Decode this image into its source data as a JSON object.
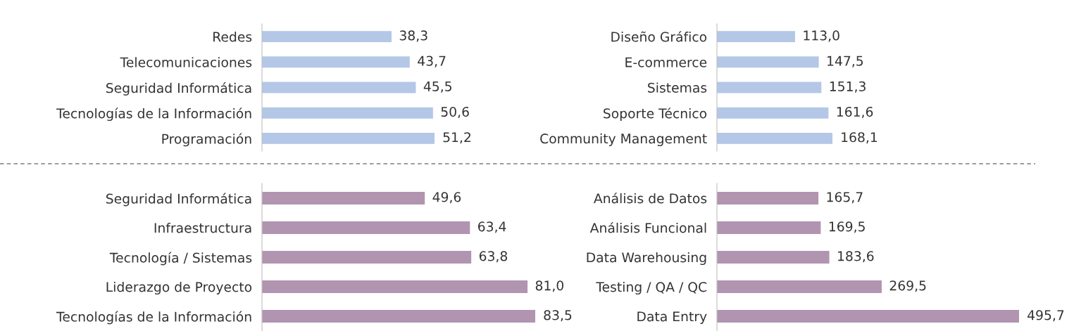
{
  "chart_data": [
    {
      "type": "bar",
      "orientation": "horizontal",
      "tick_labels": "y",
      "color": "#b4c7e7",
      "categories": [
        "Redes",
        "Telecomunicaciones",
        "Seguridad Informática",
        "Tecnologías de la Información",
        "Programación"
      ],
      "values": [
        38.3,
        43.7,
        45.5,
        50.6,
        51.2
      ],
      "value_labels": [
        "38,3",
        "43,7",
        "45,5",
        "50,6",
        "51,2"
      ]
    },
    {
      "type": "bar",
      "orientation": "horizontal",
      "tick_labels": "y",
      "color": "#b4c7e7",
      "categories": [
        "Diseño Gráfico",
        "E-commerce",
        "Sistemas",
        "Soporte Técnico",
        "Community Management"
      ],
      "values": [
        113.0,
        147.5,
        151.3,
        161.6,
        168.1
      ],
      "value_labels": [
        "113,0",
        "147,5",
        "151,3",
        "161,6",
        "168,1"
      ]
    },
    {
      "type": "bar",
      "orientation": "horizontal",
      "tick_labels": "y",
      "color": "#b195b0",
      "categories": [
        "Seguridad Informática",
        "Infraestructura",
        "Tecnología / Sistemas",
        "Liderazgo de Proyecto",
        "Tecnologías de la Información"
      ],
      "values": [
        49.6,
        63.4,
        63.8,
        81.0,
        83.5
      ],
      "value_labels": [
        "49,6",
        "63,4",
        "63,8",
        "81,0",
        "83,5"
      ]
    },
    {
      "type": "bar",
      "orientation": "horizontal",
      "tick_labels": "y",
      "color": "#b195b0",
      "categories": [
        "Análisis de Datos",
        "Análisis Funcional",
        "Data Warehousing",
        "Testing / QA / QC",
        "Data Entry"
      ],
      "values": [
        165.7,
        169.5,
        183.6,
        269.5,
        495.7
      ],
      "value_labels": [
        "165,7",
        "169,5",
        "183,6",
        "269,5",
        "495,7"
      ]
    }
  ]
}
